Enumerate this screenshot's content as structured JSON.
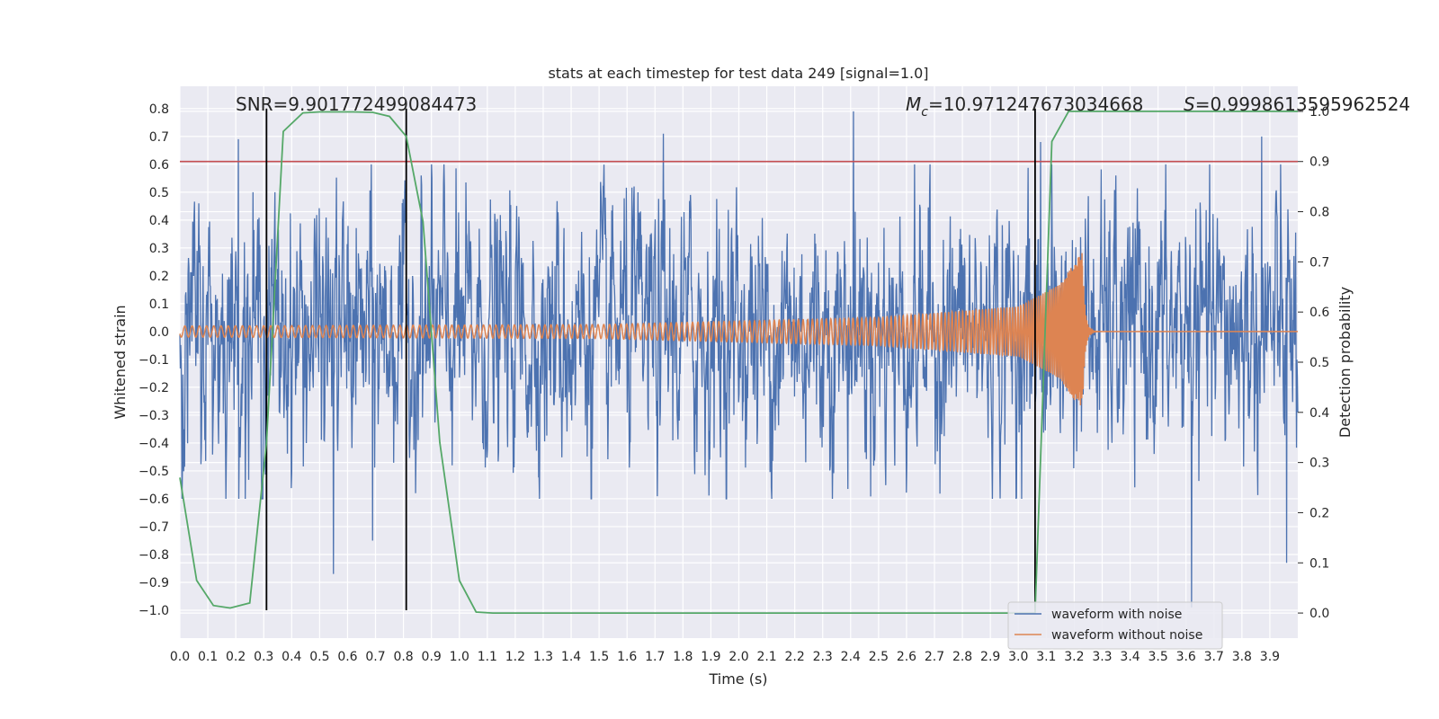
{
  "chart_data": {
    "type": "line",
    "title": "stats at each timestep for test data 249 [signal=1.0]",
    "xlabel": "Time (s)",
    "ylabel_left": "Whitened strain",
    "ylabel_right": "Detection probability",
    "xlim": [
      0.0,
      4.0
    ],
    "ylim_left": [
      -1.1,
      0.88
    ],
    "ylim_right": [
      -0.05,
      1.05
    ],
    "x_ticks": [
      "0.0",
      "0.1",
      "0.2",
      "0.3",
      "0.4",
      "0.5",
      "0.6",
      "0.7",
      "0.8",
      "0.9",
      "1.0",
      "1.1",
      "1.2",
      "1.3",
      "1.4",
      "1.5",
      "1.6",
      "1.7",
      "1.8",
      "1.9",
      "2.0",
      "2.1",
      "2.2",
      "2.3",
      "2.4",
      "2.5",
      "2.6",
      "2.7",
      "2.8",
      "2.9",
      "3.0",
      "3.1",
      "3.2",
      "3.3",
      "3.4",
      "3.5",
      "3.6",
      "3.7",
      "3.8",
      "3.9"
    ],
    "y_left_ticks": [
      "−1.0",
      "−0.9",
      "−0.8",
      "−0.7",
      "−0.6",
      "−0.5",
      "−0.4",
      "−0.3",
      "−0.2",
      "−0.1",
      "0.0",
      "0.1",
      "0.2",
      "0.3",
      "0.4",
      "0.5",
      "0.6",
      "0.7",
      "0.8"
    ],
    "y_right_ticks": [
      "0.0",
      "0.1",
      "0.2",
      "0.3",
      "0.4",
      "0.5",
      "0.6",
      "0.7",
      "0.8",
      "0.9",
      "1.0"
    ],
    "annotations": {
      "snr": "SNR=9.901772499084473",
      "mc_symbol": "M",
      "mc_sub": "c",
      "mc_value": "=10.971247673034668",
      "s_symbol": "S",
      "s_value": "=0.9998613595962524"
    },
    "vertical_lines_x": [
      0.31,
      0.81,
      3.06
    ],
    "threshold_right": 0.9,
    "legend": {
      "position": "lower-right",
      "items": [
        {
          "label": "waveform with noise",
          "color": "#4c72b0"
        },
        {
          "label": "waveform without noise",
          "color": "#dd8452"
        }
      ]
    },
    "series": [
      {
        "name": "waveform with noise",
        "axis": "left",
        "color": "#4c72b0",
        "description_stats": {
          "typical_range": [
            -0.45,
            0.45
          ],
          "max": 0.79,
          "min": -0.99
        },
        "peaks": [
          {
            "x": 0.21,
            "y": 0.69
          },
          {
            "x": 0.55,
            "y": -0.87
          },
          {
            "x": 0.69,
            "y": -0.75
          },
          {
            "x": 1.73,
            "y": 0.71
          },
          {
            "x": 2.41,
            "y": 0.79
          },
          {
            "x": 3.08,
            "y": 0.68
          },
          {
            "x": 3.62,
            "y": -0.99
          },
          {
            "x": 3.96,
            "y": -0.83
          },
          {
            "x": 3.87,
            "y": 0.7
          }
        ]
      },
      {
        "name": "waveform without noise",
        "axis": "left",
        "color": "#dd8452",
        "kind": "chirp",
        "points": [
          {
            "x": 0.0,
            "amp": 0.02
          },
          {
            "x": 1.5,
            "amp": 0.025
          },
          {
            "x": 2.5,
            "amp": 0.05
          },
          {
            "x": 3.0,
            "amp": 0.09
          },
          {
            "x": 3.15,
            "amp": 0.17
          },
          {
            "x": 3.23,
            "amp": 0.29
          },
          {
            "x": 3.26,
            "amp": 0.0
          }
        ],
        "merger_x": 3.23
      },
      {
        "axis": "right",
        "color": "#55a868",
        "x": [
          0.0,
          0.06,
          0.12,
          0.18,
          0.25,
          0.31,
          0.37,
          0.44,
          0.5,
          0.56,
          0.62,
          0.69,
          0.75,
          0.81,
          0.87,
          0.93,
          1.0,
          1.06,
          1.12,
          1.18,
          1.25,
          1.5,
          2.0,
          2.5,
          3.0,
          3.06,
          3.12,
          3.18,
          3.25,
          3.31,
          3.5,
          4.0
        ],
        "y": [
          0.27,
          0.065,
          0.015,
          0.01,
          0.02,
          0.34,
          0.96,
          0.997,
          0.999,
          0.999,
          0.999,
          0.998,
          0.99,
          0.95,
          0.78,
          0.34,
          0.065,
          0.002,
          0.0,
          0.0,
          0.0,
          0.0,
          0.0,
          0.0,
          0.0,
          0.0,
          0.94,
          1.0,
          1.0,
          1.0,
          1.0,
          1.0
        ]
      }
    ]
  }
}
